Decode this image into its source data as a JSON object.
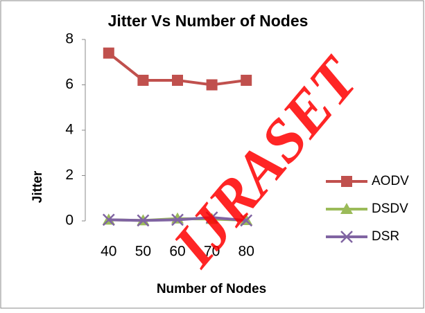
{
  "chart_data": {
    "type": "line",
    "title": "Jitter Vs Number of Nodes",
    "xlabel": "Number of Nodes",
    "ylabel": "Jitter",
    "categories": [
      "40",
      "50",
      "60",
      "70",
      "80"
    ],
    "series": [
      {
        "name": "AODV",
        "color": "#c0504d",
        "marker": "square",
        "values": [
          7.4,
          6.2,
          6.2,
          6.0,
          6.2
        ]
      },
      {
        "name": "DSDV",
        "color": "#9bbb59",
        "marker": "triangle",
        "values": [
          0.05,
          0.02,
          0.1,
          0.08,
          0.03
        ]
      },
      {
        "name": "DSR",
        "color": "#8064a2",
        "marker": "x",
        "values": [
          0.05,
          0.02,
          0.05,
          0.15,
          0.02
        ]
      }
    ],
    "ylim": [
      0,
      8
    ],
    "yticks": [
      0,
      2,
      4,
      6,
      8
    ],
    "grid": false,
    "legend": "right",
    "watermark": "IJRASET"
  }
}
